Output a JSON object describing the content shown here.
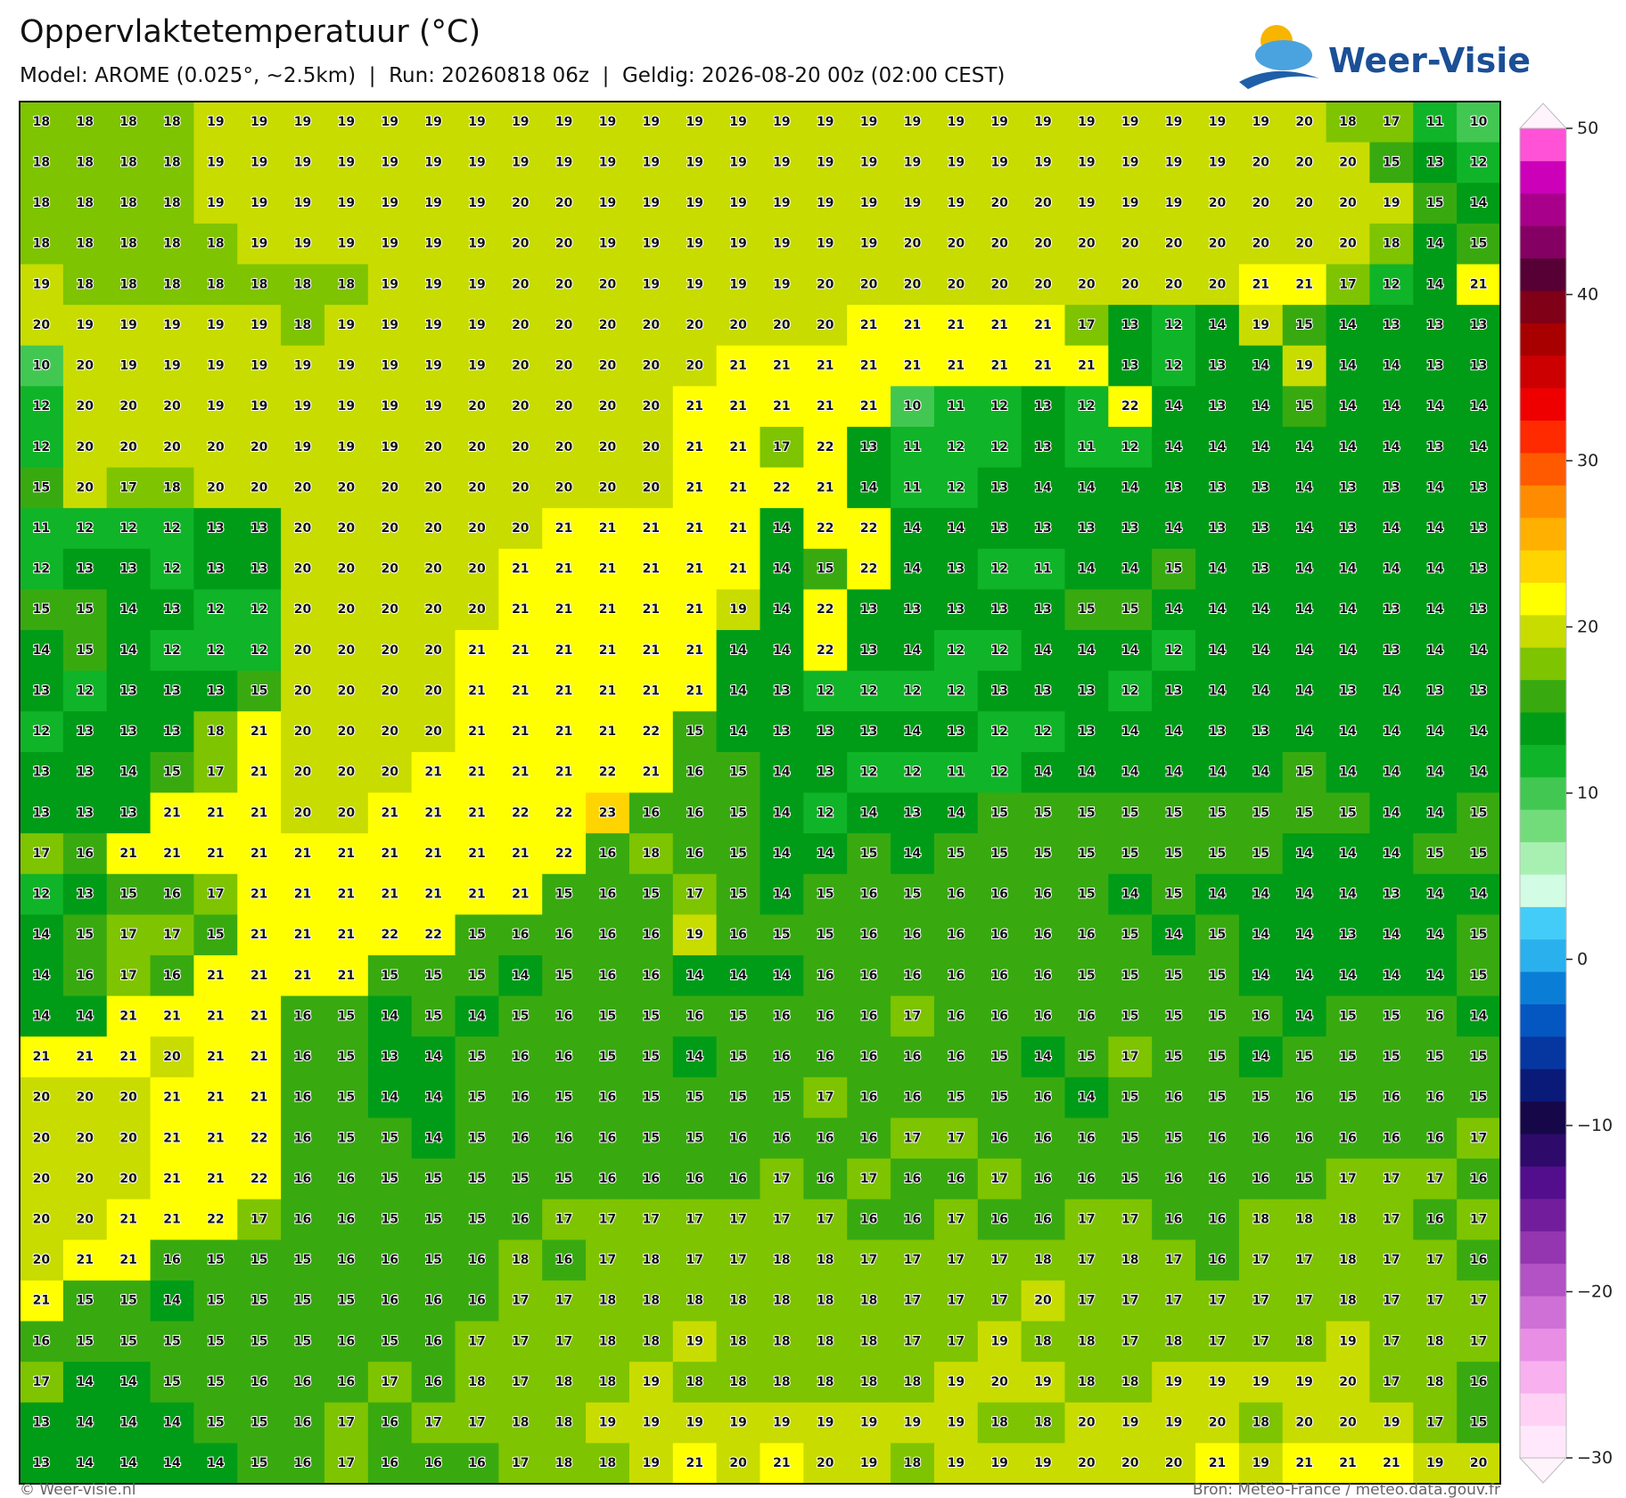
{
  "chart_data": {
    "type": "grid-map",
    "title": "Oppervlaktetemperatuur (°C)",
    "subtitle": "Model: AROME (0.025°, ~2.5km)  |  Run: 20260818 06z  |  Geldig: 2026-08-20 00z (02:00 CEST)",
    "brand": "Weer-Visie",
    "credit": "© Weer-visie.nl",
    "source": "Bron: Météo-France / meteo.data.gouv.fr",
    "values": [
      [
        18,
        18,
        18,
        18,
        19,
        19,
        19,
        19,
        19,
        19,
        19,
        19,
        19,
        19,
        19,
        19,
        19,
        19,
        19,
        19,
        19,
        19,
        19,
        19,
        19,
        19,
        19,
        19,
        19,
        20,
        18,
        17,
        11,
        10
      ],
      [
        18,
        18,
        18,
        18,
        19,
        19,
        19,
        19,
        19,
        19,
        19,
        19,
        19,
        19,
        19,
        19,
        19,
        19,
        19,
        19,
        19,
        19,
        19,
        19,
        19,
        19,
        19,
        19,
        20,
        20,
        20,
        15,
        13,
        12
      ],
      [
        18,
        18,
        18,
        18,
        19,
        19,
        19,
        19,
        19,
        19,
        19,
        20,
        20,
        19,
        19,
        19,
        19,
        19,
        19,
        19,
        19,
        19,
        20,
        20,
        19,
        19,
        19,
        20,
        20,
        20,
        20,
        19,
        15,
        14
      ],
      [
        18,
        18,
        18,
        18,
        18,
        19,
        19,
        19,
        19,
        19,
        19,
        20,
        20,
        19,
        19,
        19,
        19,
        19,
        19,
        19,
        20,
        20,
        20,
        20,
        20,
        20,
        20,
        20,
        20,
        20,
        20,
        18,
        14,
        15
      ],
      [
        19,
        18,
        18,
        18,
        18,
        18,
        18,
        18,
        19,
        19,
        19,
        20,
        20,
        20,
        19,
        19,
        19,
        19,
        20,
        20,
        20,
        20,
        20,
        20,
        20,
        20,
        20,
        20,
        21,
        21,
        17,
        12,
        14,
        21
      ],
      [
        20,
        19,
        19,
        19,
        19,
        19,
        18,
        19,
        19,
        19,
        19,
        20,
        20,
        20,
        20,
        20,
        20,
        20,
        20,
        21,
        21,
        21,
        21,
        21,
        17,
        13,
        12,
        14,
        19,
        15,
        14,
        13,
        13,
        13
      ],
      [
        10,
        20,
        19,
        19,
        19,
        19,
        19,
        19,
        19,
        19,
        19,
        20,
        20,
        20,
        20,
        20,
        21,
        21,
        21,
        21,
        21,
        21,
        21,
        21,
        21,
        13,
        12,
        13,
        14,
        19,
        14,
        14,
        13,
        13
      ],
      [
        12,
        20,
        20,
        20,
        19,
        19,
        19,
        19,
        19,
        19,
        20,
        20,
        20,
        20,
        20,
        21,
        21,
        21,
        21,
        21,
        10,
        11,
        12,
        13,
        12,
        22,
        14,
        13,
        14,
        15,
        14,
        14,
        14,
        14
      ],
      [
        12,
        20,
        20,
        20,
        20,
        20,
        19,
        19,
        19,
        20,
        20,
        20,
        20,
        20,
        20,
        21,
        21,
        17,
        22,
        13,
        11,
        12,
        12,
        13,
        11,
        12,
        14,
        14,
        14,
        14,
        14,
        14,
        13,
        14
      ],
      [
        15,
        20,
        17,
        18,
        20,
        20,
        20,
        20,
        20,
        20,
        20,
        20,
        20,
        20,
        20,
        21,
        21,
        22,
        21,
        14,
        11,
        12,
        13,
        14,
        14,
        14,
        13,
        13,
        13,
        14,
        13,
        13,
        14,
        13
      ],
      [
        11,
        12,
        12,
        12,
        13,
        13,
        20,
        20,
        20,
        20,
        20,
        20,
        21,
        21,
        21,
        21,
        21,
        14,
        22,
        22,
        14,
        14,
        13,
        13,
        13,
        13,
        14,
        13,
        13,
        14,
        13,
        14,
        14,
        13
      ],
      [
        12,
        13,
        13,
        12,
        13,
        13,
        20,
        20,
        20,
        20,
        20,
        21,
        21,
        21,
        21,
        21,
        21,
        14,
        15,
        22,
        14,
        13,
        12,
        11,
        14,
        14,
        15,
        14,
        13,
        14,
        14,
        14,
        14,
        13
      ],
      [
        15,
        15,
        14,
        13,
        12,
        12,
        20,
        20,
        20,
        20,
        20,
        21,
        21,
        21,
        21,
        21,
        19,
        14,
        22,
        13,
        13,
        13,
        13,
        13,
        15,
        15,
        14,
        14,
        14,
        14,
        14,
        13,
        14,
        13
      ],
      [
        14,
        15,
        14,
        12,
        12,
        12,
        20,
        20,
        20,
        20,
        21,
        21,
        21,
        21,
        21,
        21,
        14,
        14,
        22,
        13,
        14,
        12,
        12,
        14,
        14,
        14,
        12,
        14,
        14,
        14,
        14,
        13,
        14,
        14
      ],
      [
        13,
        12,
        13,
        13,
        13,
        15,
        20,
        20,
        20,
        20,
        21,
        21,
        21,
        21,
        21,
        21,
        14,
        13,
        12,
        12,
        12,
        12,
        13,
        13,
        13,
        12,
        13,
        14,
        14,
        14,
        13,
        14,
        13,
        13
      ],
      [
        12,
        13,
        13,
        13,
        18,
        21,
        20,
        20,
        20,
        20,
        21,
        21,
        21,
        21,
        22,
        15,
        14,
        13,
        13,
        13,
        14,
        13,
        12,
        12,
        13,
        14,
        14,
        13,
        13,
        14,
        14,
        14,
        14,
        14
      ],
      [
        13,
        13,
        14,
        15,
        17,
        21,
        20,
        20,
        20,
        21,
        21,
        21,
        21,
        22,
        21,
        16,
        15,
        14,
        13,
        12,
        12,
        11,
        12,
        14,
        14,
        14,
        14,
        14,
        14,
        15,
        14,
        14,
        14,
        14
      ],
      [
        13,
        13,
        13,
        21,
        21,
        21,
        20,
        20,
        21,
        21,
        21,
        22,
        22,
        23,
        16,
        16,
        15,
        14,
        12,
        14,
        13,
        14,
        15,
        15,
        15,
        15,
        15,
        15,
        15,
        15,
        15,
        14,
        14,
        15
      ],
      [
        17,
        16,
        21,
        21,
        21,
        21,
        21,
        21,
        21,
        21,
        21,
        21,
        22,
        16,
        18,
        16,
        15,
        14,
        14,
        15,
        14,
        15,
        15,
        15,
        15,
        15,
        15,
        15,
        15,
        14,
        14,
        14,
        15,
        15
      ],
      [
        12,
        13,
        15,
        16,
        17,
        21,
        21,
        21,
        21,
        21,
        21,
        21,
        15,
        16,
        15,
        17,
        15,
        14,
        15,
        16,
        15,
        16,
        16,
        16,
        15,
        14,
        15,
        14,
        14,
        14,
        14,
        13,
        14,
        14
      ],
      [
        14,
        15,
        17,
        17,
        15,
        21,
        21,
        21,
        22,
        22,
        15,
        16,
        16,
        16,
        16,
        19,
        16,
        15,
        15,
        16,
        16,
        16,
        16,
        16,
        16,
        15,
        14,
        15,
        14,
        14,
        13,
        14,
        14,
        15
      ],
      [
        14,
        16,
        17,
        16,
        21,
        21,
        21,
        21,
        15,
        15,
        15,
        14,
        15,
        16,
        16,
        14,
        14,
        14,
        16,
        16,
        16,
        16,
        16,
        16,
        15,
        15,
        15,
        15,
        14,
        14,
        14,
        14,
        14,
        15
      ],
      [
        14,
        14,
        21,
        21,
        21,
        21,
        16,
        15,
        14,
        15,
        14,
        15,
        16,
        15,
        15,
        16,
        15,
        16,
        16,
        16,
        17,
        16,
        16,
        16,
        16,
        15,
        15,
        15,
        16,
        14,
        15,
        15,
        16,
        14
      ],
      [
        21,
        21,
        21,
        20,
        21,
        21,
        16,
        15,
        13,
        14,
        15,
        16,
        16,
        15,
        15,
        14,
        15,
        16,
        16,
        16,
        16,
        16,
        15,
        14,
        15,
        17,
        15,
        15,
        14,
        15,
        15,
        15,
        15,
        15
      ],
      [
        20,
        20,
        20,
        21,
        21,
        21,
        16,
        15,
        14,
        14,
        15,
        16,
        15,
        16,
        15,
        15,
        15,
        15,
        17,
        16,
        16,
        15,
        15,
        16,
        14,
        15,
        16,
        15,
        15,
        16,
        15,
        16,
        16,
        15
      ],
      [
        20,
        20,
        20,
        21,
        21,
        22,
        16,
        15,
        15,
        14,
        15,
        16,
        16,
        16,
        15,
        15,
        16,
        16,
        16,
        16,
        17,
        17,
        16,
        16,
        16,
        15,
        15,
        16,
        16,
        16,
        16,
        16,
        16,
        17
      ],
      [
        20,
        20,
        20,
        21,
        21,
        22,
        16,
        16,
        15,
        15,
        15,
        15,
        15,
        16,
        16,
        16,
        16,
        17,
        16,
        17,
        16,
        16,
        17,
        16,
        16,
        15,
        16,
        16,
        16,
        15,
        17,
        17,
        17,
        16
      ],
      [
        20,
        20,
        21,
        21,
        22,
        17,
        16,
        16,
        15,
        15,
        15,
        16,
        17,
        17,
        17,
        17,
        17,
        17,
        17,
        16,
        16,
        17,
        16,
        16,
        17,
        17,
        16,
        16,
        18,
        18,
        18,
        17,
        16,
        17
      ],
      [
        20,
        21,
        21,
        16,
        15,
        15,
        15,
        16,
        16,
        15,
        16,
        18,
        16,
        17,
        18,
        17,
        17,
        18,
        18,
        17,
        17,
        17,
        17,
        18,
        17,
        18,
        17,
        16,
        17,
        17,
        18,
        17,
        17,
        16
      ],
      [
        21,
        15,
        15,
        14,
        15,
        15,
        15,
        15,
        16,
        16,
        16,
        17,
        17,
        18,
        18,
        18,
        18,
        18,
        18,
        18,
        17,
        17,
        17,
        20,
        17,
        17,
        17,
        17,
        17,
        17,
        18,
        17,
        17,
        17
      ],
      [
        16,
        15,
        15,
        15,
        15,
        15,
        15,
        16,
        15,
        16,
        17,
        17,
        17,
        18,
        18,
        19,
        18,
        18,
        18,
        18,
        17,
        17,
        19,
        18,
        18,
        17,
        18,
        17,
        17,
        18,
        19,
        17,
        18,
        17
      ],
      [
        17,
        14,
        14,
        15,
        15,
        16,
        16,
        16,
        17,
        16,
        18,
        17,
        18,
        18,
        19,
        18,
        18,
        18,
        18,
        18,
        18,
        19,
        20,
        19,
        18,
        18,
        19,
        19,
        19,
        19,
        20,
        17,
        18,
        16
      ],
      [
        13,
        14,
        14,
        14,
        15,
        15,
        16,
        17,
        16,
        17,
        17,
        18,
        18,
        19,
        19,
        19,
        19,
        19,
        19,
        19,
        19,
        19,
        18,
        18,
        20,
        19,
        19,
        20,
        18,
        20,
        20,
        19,
        17,
        15
      ],
      [
        13,
        14,
        14,
        14,
        14,
        15,
        16,
        17,
        16,
        16,
        16,
        17,
        18,
        18,
        19,
        21,
        20,
        21,
        20,
        19,
        18,
        19,
        19,
        19,
        20,
        20,
        20,
        21,
        19,
        21,
        21,
        21,
        19,
        20
      ]
    ],
    "colorbar": {
      "lim": [
        -30,
        50
      ],
      "ticks": [
        {
          "value": -30,
          "label": "−30"
        },
        {
          "value": -20,
          "label": "−20"
        },
        {
          "value": -10,
          "label": "−10"
        },
        0,
        10,
        20,
        30,
        40,
        50
      ],
      "colors": [
        "#ffe8fb",
        "#ffd2f5",
        "#f8b0ef",
        "#e88ee4",
        "#cf70d6",
        "#b252c4",
        "#9336b0",
        "#721e9c",
        "#520e8c",
        "#2e0a6a",
        "#160848",
        "#0a1a78",
        "#0636a0",
        "#0456c0",
        "#0a7ed6",
        "#2ab0ec",
        "#44ccf8",
        "#d2fce4",
        "#a8f0b2",
        "#72dc7a",
        "#42c852",
        "#10b428",
        "#009c18",
        "#38aa10",
        "#7ec400",
        "#c8dc00",
        "#ffff00",
        "#ffd400",
        "#ffb000",
        "#ff8c00",
        "#ff5a00",
        "#ff2a00",
        "#ee0000",
        "#cc0000",
        "#a80000",
        "#800018",
        "#560036",
        "#840062",
        "#a8008a",
        "#cc00b8",
        "#ff52d6"
      ]
    }
  }
}
